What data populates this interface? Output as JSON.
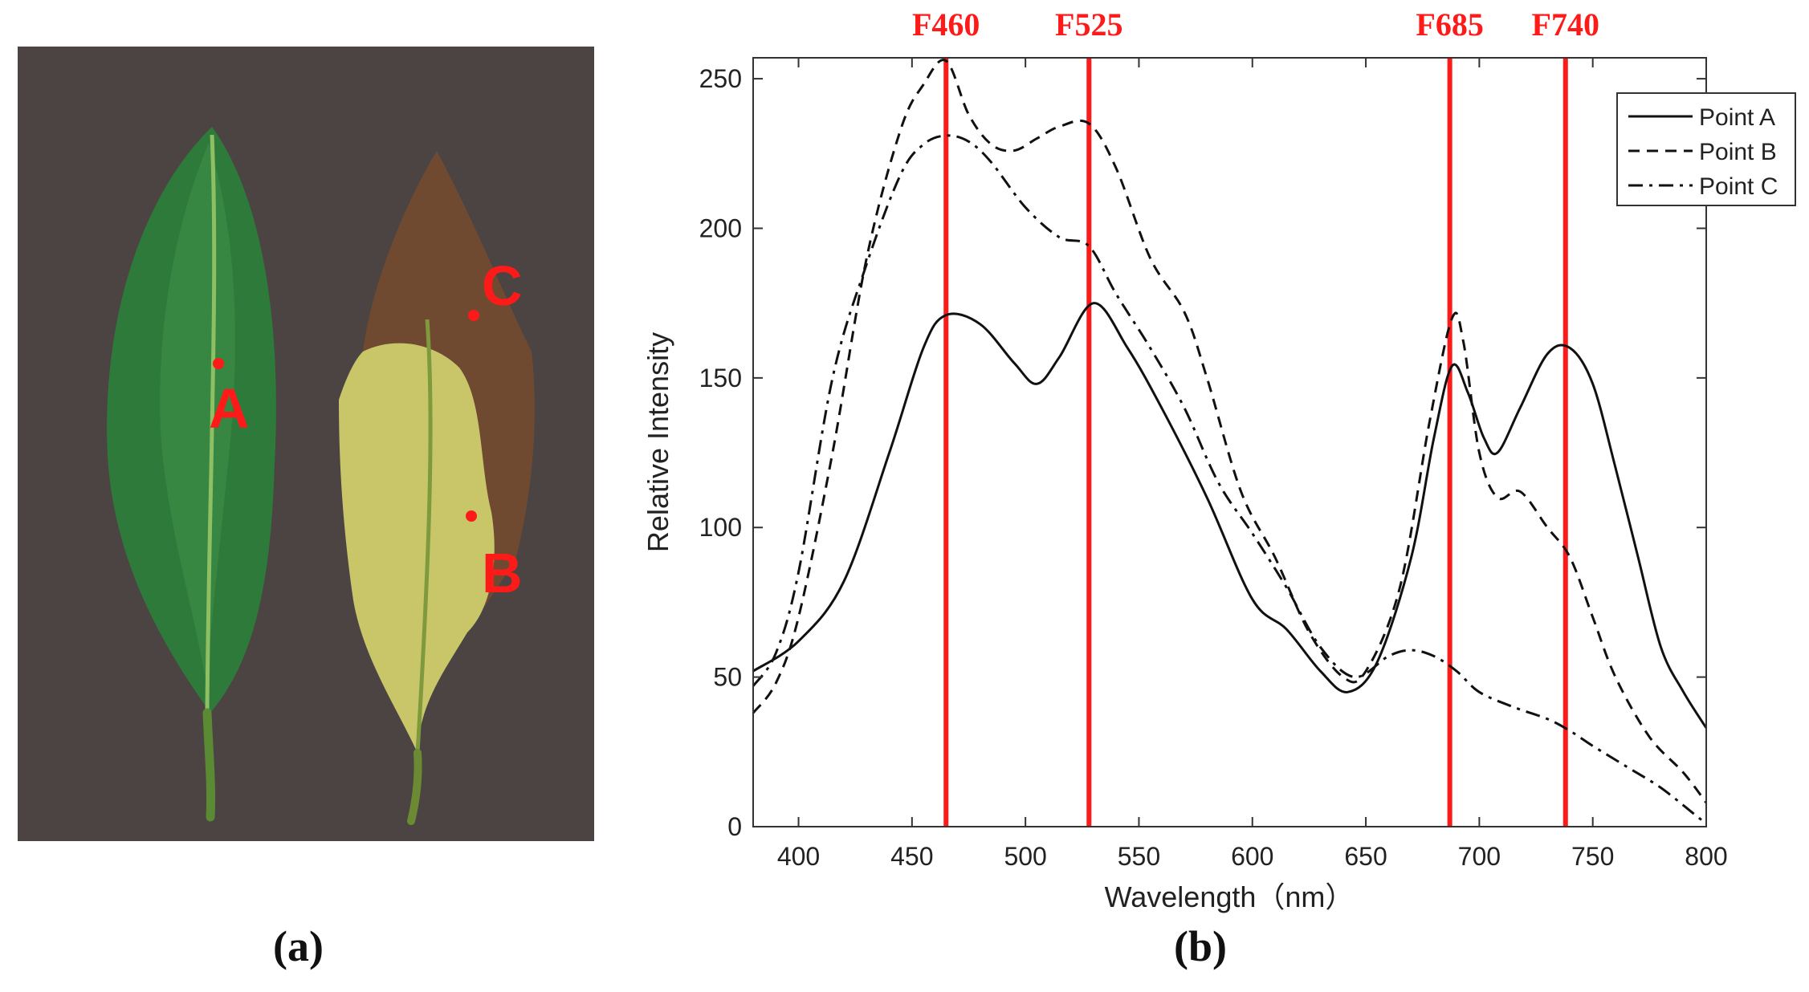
{
  "panels": {
    "a": {
      "caption": "(a)",
      "point_labels": [
        "A",
        "B",
        "C"
      ],
      "colors": {
        "background": "#4b4442",
        "healthy_leaf": "#2e7a3a",
        "yellow_leaf": "#c9c66a",
        "brown_leaf": "#6f4a31",
        "marker": "#ff1a1a"
      }
    },
    "b": {
      "caption": "(b)"
    }
  },
  "chart_data": {
    "type": "line",
    "xlabel": "Wavelength（nm）",
    "ylabel": "Relative Intensity",
    "xlim": [
      380,
      800
    ],
    "ylim": [
      0,
      257
    ],
    "x_ticks": [
      400,
      450,
      500,
      550,
      600,
      650,
      700,
      750,
      800
    ],
    "y_ticks": [
      0,
      50,
      100,
      150,
      200,
      250
    ],
    "legend_position": "top-right",
    "grid": false,
    "reference_lines": [
      {
        "label": "F460",
        "x": 465,
        "color": "#ff1a1a"
      },
      {
        "label": "F525",
        "x": 528,
        "color": "#ff1a1a"
      },
      {
        "label": "F685",
        "x": 687,
        "color": "#ff1a1a"
      },
      {
        "label": "F740",
        "x": 738,
        "color": "#ff1a1a"
      }
    ],
    "series": [
      {
        "name": "Point A",
        "style": "solid",
        "x": [
          380,
          400,
          420,
          440,
          455,
          465,
          480,
          495,
          505,
          515,
          530,
          545,
          560,
          580,
          600,
          615,
          630,
          642,
          655,
          670,
          680,
          688,
          695,
          702,
          708,
          718,
          730,
          740,
          750,
          760,
          770,
          780,
          790,
          800
        ],
        "y": [
          52,
          62,
          82,
          125,
          160,
          171,
          168,
          155,
          148,
          157,
          175,
          160,
          140,
          110,
          76,
          66,
          52,
          45,
          55,
          90,
          130,
          154,
          145,
          130,
          125,
          140,
          158,
          160,
          148,
          120,
          90,
          60,
          45,
          33
        ]
      },
      {
        "name": "Point B",
        "style": "dashed",
        "x": [
          380,
          390,
          400,
          415,
          430,
          445,
          455,
          465,
          475,
          485,
          495,
          505,
          515,
          528,
          540,
          555,
          570,
          580,
          595,
          610,
          625,
          640,
          650,
          665,
          678,
          688,
          693,
          700,
          708,
          718,
          730,
          740,
          750,
          760,
          775,
          790,
          800
        ],
        "y": [
          38,
          48,
          70,
          125,
          190,
          233,
          248,
          256,
          238,
          228,
          226,
          230,
          234,
          235,
          220,
          190,
          172,
          150,
          112,
          90,
          65,
          50,
          52,
          80,
          135,
          170,
          162,
          125,
          110,
          112,
          100,
          90,
          70,
          50,
          30,
          18,
          8
        ]
      },
      {
        "name": "Point C",
        "style": "dashdot",
        "x": [
          380,
          390,
          400,
          415,
          430,
          445,
          455,
          465,
          475,
          485,
          500,
          515,
          528,
          540,
          555,
          570,
          585,
          600,
          615,
          630,
          645,
          660,
          670,
          680,
          690,
          700,
          715,
          730,
          740,
          750,
          765,
          780,
          795,
          800
        ],
        "y": [
          47,
          58,
          85,
          150,
          188,
          218,
          228,
          231,
          229,
          222,
          207,
          197,
          194,
          178,
          160,
          140,
          115,
          98,
          80,
          60,
          50,
          57,
          59,
          57,
          52,
          45,
          40,
          36,
          32,
          27,
          20,
          13,
          4,
          1
        ]
      }
    ]
  }
}
